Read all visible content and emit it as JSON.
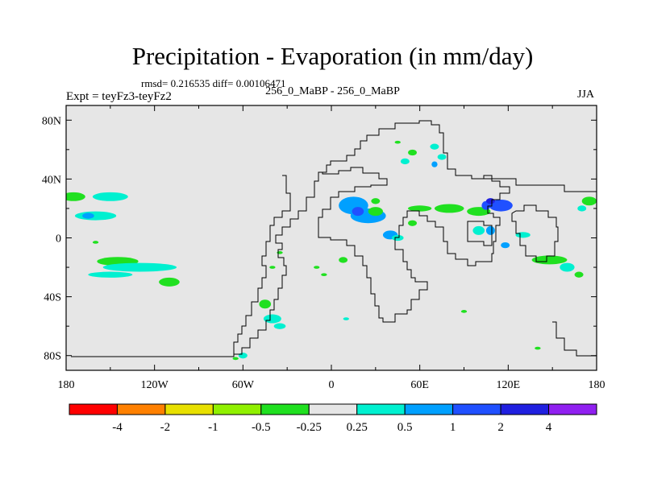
{
  "header": {
    "title": "Precipitation - Evaporation (in mm/day)",
    "stats": "rmsd= 0.216535 diff= 0.00106471",
    "case": "256_0_MaBP - 256_0_MaBP",
    "expt": "Expt = teyFz3-teyFz2",
    "season": "JJA"
  },
  "chart_data": {
    "type": "heatmap",
    "title": "Precipitation - Evaporation (in mm/day)",
    "subtitle": "256_0_MaBP - 256_0_MaBP",
    "xlabel": "",
    "ylabel": "",
    "xlim": [
      -180,
      180
    ],
    "ylim": [
      -90,
      90
    ],
    "x_ticks": [
      -180,
      -120,
      -60,
      0,
      60,
      120,
      180
    ],
    "x_tick_labels": [
      "180",
      "120W",
      "60W",
      "0",
      "60E",
      "120E",
      "180"
    ],
    "y_ticks": [
      80,
      40,
      0,
      -40,
      -80
    ],
    "y_tick_labels": [
      "80N",
      "40N",
      "0",
      "40S",
      "80S"
    ],
    "colorbar": {
      "colors": [
        "#ff0000",
        "#ff8000",
        "#e8e000",
        "#90f000",
        "#20e020",
        "#e6e6e6",
        "#00f0d0",
        "#00a0ff",
        "#2050ff",
        "#2020e0",
        "#9020f0"
      ],
      "labels": [
        "-4",
        "-2",
        "-1",
        "-0.5",
        "-0.25",
        "0.25",
        "0.5",
        "1",
        "2",
        "4"
      ]
    },
    "background_color": "#e6e6e6",
    "regions": [
      {
        "lon": -175,
        "lat": 28,
        "level": -0.25,
        "rx": 8,
        "ry": 3
      },
      {
        "lon": -150,
        "lat": 28,
        "level": 0.25,
        "rx": 12,
        "ry": 3
      },
      {
        "lon": -160,
        "lat": 15,
        "level": 0.25,
        "rx": 14,
        "ry": 3
      },
      {
        "lon": -165,
        "lat": 15,
        "level": 0.5,
        "rx": 4,
        "ry": 2
      },
      {
        "lon": -145,
        "lat": -16,
        "level": -0.25,
        "rx": 14,
        "ry": 3
      },
      {
        "lon": -130,
        "lat": -20,
        "level": 0.25,
        "rx": 25,
        "ry": 3
      },
      {
        "lon": -150,
        "lat": -25,
        "level": 0.25,
        "rx": 15,
        "ry": 2
      },
      {
        "lon": -110,
        "lat": -30,
        "level": -0.25,
        "rx": 7,
        "ry": 3
      },
      {
        "lon": -160,
        "lat": -3,
        "level": -0.25,
        "rx": 2,
        "ry": 1
      },
      {
        "lon": 15,
        "lat": 22,
        "level": 0.5,
        "rx": 10,
        "ry": 6
      },
      {
        "lon": 25,
        "lat": 15,
        "level": 0.5,
        "rx": 12,
        "ry": 5
      },
      {
        "lon": 18,
        "lat": 18,
        "level": 1,
        "rx": 4,
        "ry": 3
      },
      {
        "lon": 30,
        "lat": 18,
        "level": -0.25,
        "rx": 5,
        "ry": 3
      },
      {
        "lon": 40,
        "lat": 2,
        "level": 0.5,
        "rx": 5,
        "ry": 3
      },
      {
        "lon": 45,
        "lat": 0,
        "level": 0.25,
        "rx": 4,
        "ry": 2
      },
      {
        "lon": 55,
        "lat": 10,
        "level": -0.25,
        "rx": 3,
        "ry": 2
      },
      {
        "lon": 60,
        "lat": 20,
        "level": -0.25,
        "rx": 8,
        "ry": 2
      },
      {
        "lon": 80,
        "lat": 20,
        "level": -0.25,
        "rx": 10,
        "ry": 3
      },
      {
        "lon": 100,
        "lat": 18,
        "level": -0.25,
        "rx": 8,
        "ry": 3
      },
      {
        "lon": 105,
        "lat": 22,
        "level": 1,
        "rx": 3,
        "ry": 3
      },
      {
        "lon": 115,
        "lat": 22,
        "level": 1,
        "rx": 8,
        "ry": 4
      },
      {
        "lon": 108,
        "lat": 25,
        "level": 2,
        "rx": 3,
        "ry": 2
      },
      {
        "lon": 100,
        "lat": 5,
        "level": 0.25,
        "rx": 4,
        "ry": 3
      },
      {
        "lon": 108,
        "lat": 5,
        "level": 0.5,
        "rx": 3,
        "ry": 3
      },
      {
        "lon": 118,
        "lat": -5,
        "level": 0.5,
        "rx": 3,
        "ry": 2
      },
      {
        "lon": 130,
        "lat": 2,
        "level": 0.25,
        "rx": 5,
        "ry": 2
      },
      {
        "lon": 148,
        "lat": -15,
        "level": -0.25,
        "rx": 12,
        "ry": 3
      },
      {
        "lon": 175,
        "lat": 25,
        "level": -0.25,
        "rx": 5,
        "ry": 3
      },
      {
        "lon": 170,
        "lat": 20,
        "level": 0.25,
        "rx": 3,
        "ry": 2
      },
      {
        "lon": 160,
        "lat": -20,
        "level": 0.25,
        "rx": 5,
        "ry": 3
      },
      {
        "lon": 168,
        "lat": -25,
        "level": -0.25,
        "rx": 3,
        "ry": 2
      },
      {
        "lon": 55,
        "lat": 58,
        "level": -0.25,
        "rx": 3,
        "ry": 2
      },
      {
        "lon": 50,
        "lat": 52,
        "level": 0.25,
        "rx": 3,
        "ry": 2
      },
      {
        "lon": 70,
        "lat": 62,
        "level": 0.25,
        "rx": 3,
        "ry": 2
      },
      {
        "lon": 75,
        "lat": 55,
        "level": 0.25,
        "rx": 3,
        "ry": 2
      },
      {
        "lon": 70,
        "lat": 50,
        "level": 0.5,
        "rx": 2,
        "ry": 2
      },
      {
        "lon": 45,
        "lat": 65,
        "level": -0.25,
        "rx": 2,
        "ry": 1
      },
      {
        "lon": -45,
        "lat": -45,
        "level": -0.25,
        "rx": 4,
        "ry": 3
      },
      {
        "lon": -40,
        "lat": -55,
        "level": 0.25,
        "rx": 6,
        "ry": 3
      },
      {
        "lon": -35,
        "lat": -60,
        "level": 0.25,
        "rx": 4,
        "ry": 2
      },
      {
        "lon": -60,
        "lat": -80,
        "level": 0.25,
        "rx": 3,
        "ry": 2
      },
      {
        "lon": -65,
        "lat": -82,
        "level": -0.25,
        "rx": 2,
        "ry": 1
      },
      {
        "lon": -40,
        "lat": -20,
        "level": -0.25,
        "rx": 2,
        "ry": 1
      },
      {
        "lon": -35,
        "lat": -10,
        "level": -0.25,
        "rx": 2,
        "ry": 1
      },
      {
        "lon": 8,
        "lat": -15,
        "level": -0.25,
        "rx": 3,
        "ry": 2
      },
      {
        "lon": -10,
        "lat": -20,
        "level": -0.25,
        "rx": 2,
        "ry": 1
      },
      {
        "lon": -5,
        "lat": -25,
        "level": -0.25,
        "rx": 2,
        "ry": 1
      },
      {
        "lon": 10,
        "lat": -55,
        "level": 0.25,
        "rx": 2,
        "ry": 1
      },
      {
        "lon": 90,
        "lat": -50,
        "level": -0.25,
        "rx": 2,
        "ry": 1
      },
      {
        "lon": 140,
        "lat": -75,
        "level": -0.25,
        "rx": 2,
        "ry": 1
      },
      {
        "lon": 30,
        "lat": 25,
        "level": -0.25,
        "rx": 3,
        "ry": 2
      }
    ]
  }
}
